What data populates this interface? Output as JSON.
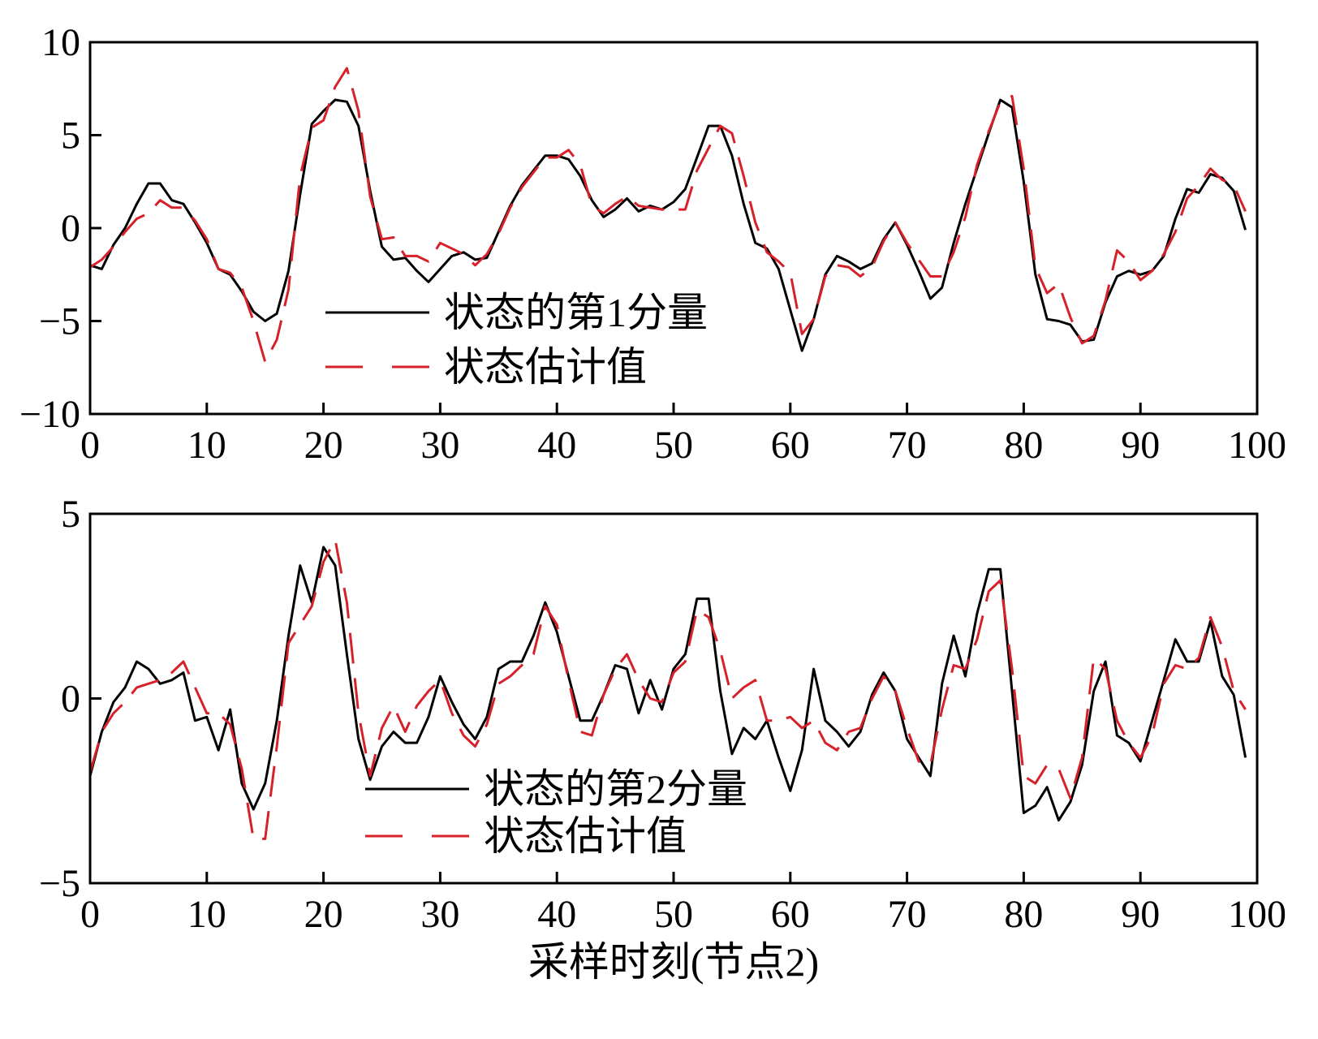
{
  "chart_data": [
    {
      "type": "line",
      "title": "",
      "xlabel": "",
      "ylabel": "",
      "xlim": [
        0,
        100
      ],
      "ylim": [
        -10,
        10
      ],
      "xticks": [
        0,
        10,
        20,
        30,
        40,
        50,
        60,
        70,
        80,
        90,
        100
      ],
      "yticks": [
        10,
        5,
        0,
        -5,
        -10
      ],
      "ytick_labels": [
        "10",
        "5",
        "0",
        "−5",
        "−10"
      ],
      "grid": false,
      "legend_position": "lower-left",
      "x": [
        0,
        1,
        2,
        3,
        4,
        5,
        6,
        7,
        8,
        9,
        10,
        11,
        12,
        13,
        14,
        15,
        16,
        17,
        18,
        19,
        20,
        21,
        22,
        23,
        24,
        25,
        26,
        27,
        28,
        29,
        30,
        31,
        32,
        33,
        34,
        35,
        36,
        37,
        38,
        39,
        40,
        41,
        42,
        43,
        44,
        45,
        46,
        47,
        48,
        49,
        50,
        51,
        52,
        53,
        54,
        55,
        56,
        57,
        58,
        59,
        60,
        61,
        62,
        63,
        64,
        65,
        66,
        67,
        68,
        69,
        70,
        71,
        72,
        73,
        74,
        75,
        76,
        77,
        78,
        79,
        80,
        81,
        82,
        83,
        84,
        85,
        86,
        87,
        88,
        89,
        90,
        91,
        92,
        93,
        94,
        95,
        96,
        97,
        98,
        99
      ],
      "series": [
        {
          "name": "状态的第1分量",
          "color": "#000000",
          "style": "solid",
          "values": [
            -2.0,
            -2.2,
            -0.9,
            0.0,
            1.3,
            2.4,
            2.4,
            1.5,
            1.3,
            0.3,
            -0.8,
            -2.2,
            -2.5,
            -3.4,
            -4.5,
            -5.0,
            -4.6,
            -2.3,
            1.8,
            5.6,
            6.3,
            6.9,
            6.8,
            5.5,
            2.0,
            -1.0,
            -1.7,
            -1.6,
            -2.3,
            -2.9,
            -2.2,
            -1.5,
            -1.3,
            -1.7,
            -1.6,
            -0.2,
            1.2,
            2.3,
            3.1,
            3.9,
            3.9,
            3.7,
            2.8,
            1.5,
            0.6,
            1.0,
            1.6,
            0.9,
            1.2,
            1.0,
            1.4,
            2.1,
            3.8,
            5.5,
            5.5,
            3.9,
            1.3,
            -0.8,
            -1.1,
            -2.2,
            -4.4,
            -6.6,
            -4.9,
            -2.5,
            -1.5,
            -1.8,
            -2.2,
            -1.9,
            -0.6,
            0.3,
            -0.9,
            -2.3,
            -3.8,
            -3.2,
            -0.8,
            1.3,
            3.2,
            5.1,
            6.9,
            6.5,
            2.5,
            -2.5,
            -4.9,
            -5.0,
            -5.2,
            -6.1,
            -6.0,
            -4.0,
            -2.6,
            -2.3,
            -2.5,
            -2.3,
            -1.5,
            0.5,
            2.1,
            1.9,
            2.9,
            2.7,
            2.0,
            -0.1
          ]
        },
        {
          "name": "状态估计值",
          "color": "#d6212b",
          "style": "dashed",
          "values": [
            -2.1,
            -1.7,
            -1.0,
            -0.2,
            0.5,
            0.8,
            1.5,
            1.1,
            1.1,
            0.4,
            -0.6,
            -2.2,
            -2.4,
            -3.2,
            -5.0,
            -7.2,
            -6.0,
            -3.3,
            2.8,
            5.4,
            5.8,
            7.6,
            8.6,
            6.3,
            1.7,
            -0.6,
            -0.5,
            -1.5,
            -1.5,
            -1.8,
            -0.8,
            -1.1,
            -1.4,
            -2.0,
            -1.4,
            -0.3,
            1.1,
            2.2,
            3.0,
            3.8,
            3.8,
            4.2,
            3.4,
            1.2,
            0.8,
            1.3,
            1.7,
            1.2,
            1.1,
            1.0,
            1.0,
            1.0,
            3.1,
            4.3,
            5.5,
            5.1,
            2.8,
            0.3,
            -1.3,
            -1.8,
            -2.4,
            -5.7,
            -4.9,
            -2.6,
            -2.0,
            -2.1,
            -2.6,
            -2.1,
            -0.7,
            0.3,
            -0.8,
            -1.7,
            -2.6,
            -2.6,
            -1.3,
            0.6,
            3.4,
            5.2,
            6.8,
            7.1,
            3.2,
            -2.1,
            -3.5,
            -3.0,
            -4.8,
            -6.2,
            -5.8,
            -3.9,
            -1.2,
            -1.8,
            -2.8,
            -2.3,
            -1.4,
            -0.2,
            1.6,
            2.3,
            3.2,
            2.6,
            2.3,
            0.9
          ]
        }
      ]
    },
    {
      "type": "line",
      "title": "",
      "xlabel": "采样时刻(节点2)",
      "ylabel": "",
      "xlim": [
        0,
        100
      ],
      "ylim": [
        -5,
        5
      ],
      "xticks": [
        0,
        10,
        20,
        30,
        40,
        50,
        60,
        70,
        80,
        90,
        100
      ],
      "yticks": [
        5,
        0,
        -5
      ],
      "ytick_labels": [
        "5",
        "0",
        "−5"
      ],
      "grid": false,
      "legend_position": "lower-left",
      "x": [
        0,
        1,
        2,
        3,
        4,
        5,
        6,
        7,
        8,
        9,
        10,
        11,
        12,
        13,
        14,
        15,
        16,
        17,
        18,
        19,
        20,
        21,
        22,
        23,
        24,
        25,
        26,
        27,
        28,
        29,
        30,
        31,
        32,
        33,
        34,
        35,
        36,
        37,
        38,
        39,
        40,
        41,
        42,
        43,
        44,
        45,
        46,
        47,
        48,
        49,
        50,
        51,
        52,
        53,
        54,
        55,
        56,
        57,
        58,
        59,
        60,
        61,
        62,
        63,
        64,
        65,
        66,
        67,
        68,
        69,
        70,
        71,
        72,
        73,
        74,
        75,
        76,
        77,
        78,
        79,
        80,
        81,
        82,
        83,
        84,
        85,
        86,
        87,
        88,
        89,
        90,
        91,
        92,
        93,
        94,
        95,
        96,
        97,
        98,
        99
      ],
      "series": [
        {
          "name": "状态的第2分量",
          "color": "#000000",
          "style": "solid",
          "values": [
            -2.1,
            -0.9,
            -0.1,
            0.3,
            1.0,
            0.8,
            0.4,
            0.5,
            0.7,
            -0.6,
            -0.5,
            -1.4,
            -0.3,
            -2.3,
            -3.0,
            -2.3,
            -0.6,
            1.7,
            3.6,
            2.6,
            4.1,
            3.6,
            1.2,
            -1.1,
            -2.2,
            -1.3,
            -0.9,
            -1.2,
            -1.2,
            -0.5,
            0.6,
            -0.1,
            -0.7,
            -1.1,
            -0.5,
            0.8,
            1.0,
            1.0,
            1.7,
            2.6,
            1.8,
            0.6,
            -0.6,
            -0.6,
            0.1,
            0.9,
            0.8,
            -0.4,
            0.5,
            -0.3,
            0.8,
            1.2,
            2.7,
            2.7,
            0.2,
            -1.5,
            -0.8,
            -1.1,
            -0.6,
            -1.6,
            -2.5,
            -1.4,
            0.8,
            -0.6,
            -0.9,
            -1.3,
            -0.9,
            0.1,
            0.7,
            0.2,
            -1.1,
            -1.6,
            -2.1,
            0.4,
            1.7,
            0.6,
            2.3,
            3.5,
            3.5,
            0.2,
            -3.1,
            -2.9,
            -2.4,
            -3.3,
            -2.8,
            -1.8,
            0.2,
            1.0,
            -1.0,
            -1.2,
            -1.7,
            -0.6,
            0.5,
            1.6,
            1.0,
            1.0,
            2.1,
            0.6,
            0.1,
            -1.6
          ]
        },
        {
          "name": "状态估计值",
          "color": "#d6212b",
          "style": "dashed",
          "values": [
            -2.0,
            -0.9,
            -0.4,
            -0.1,
            0.3,
            0.4,
            0.5,
            0.7,
            1.0,
            0.3,
            -0.4,
            -0.4,
            -0.7,
            -1.9,
            -3.8,
            -3.8,
            -1.3,
            1.5,
            2.0,
            2.5,
            3.7,
            4.3,
            2.6,
            -0.4,
            -2.1,
            -0.8,
            -0.2,
            -0.9,
            -0.2,
            0.2,
            0.5,
            -0.4,
            -1.0,
            -1.3,
            -0.7,
            0.4,
            0.6,
            0.9,
            1.2,
            2.5,
            2.0,
            0.5,
            -0.9,
            -1.0,
            0.1,
            0.8,
            1.2,
            0.5,
            0.0,
            -0.1,
            0.7,
            1.0,
            2.4,
            2.2,
            1.3,
            0.0,
            0.3,
            0.5,
            -0.6,
            -0.6,
            -0.5,
            -0.8,
            -0.6,
            -1.2,
            -1.4,
            -0.9,
            -0.8,
            0.0,
            0.6,
            0.2,
            -0.8,
            -1.7,
            -1.8,
            -0.3,
            0.9,
            0.8,
            1.6,
            2.9,
            3.2,
            0.8,
            -2.1,
            -2.3,
            -1.8,
            -1.9,
            -2.7,
            -1.6,
            1.1,
            0.8,
            -0.6,
            -1.2,
            -1.6,
            -1.0,
            0.4,
            0.9,
            0.8,
            1.1,
            2.2,
            1.4,
            0.2,
            -0.3
          ]
        }
      ]
    }
  ]
}
